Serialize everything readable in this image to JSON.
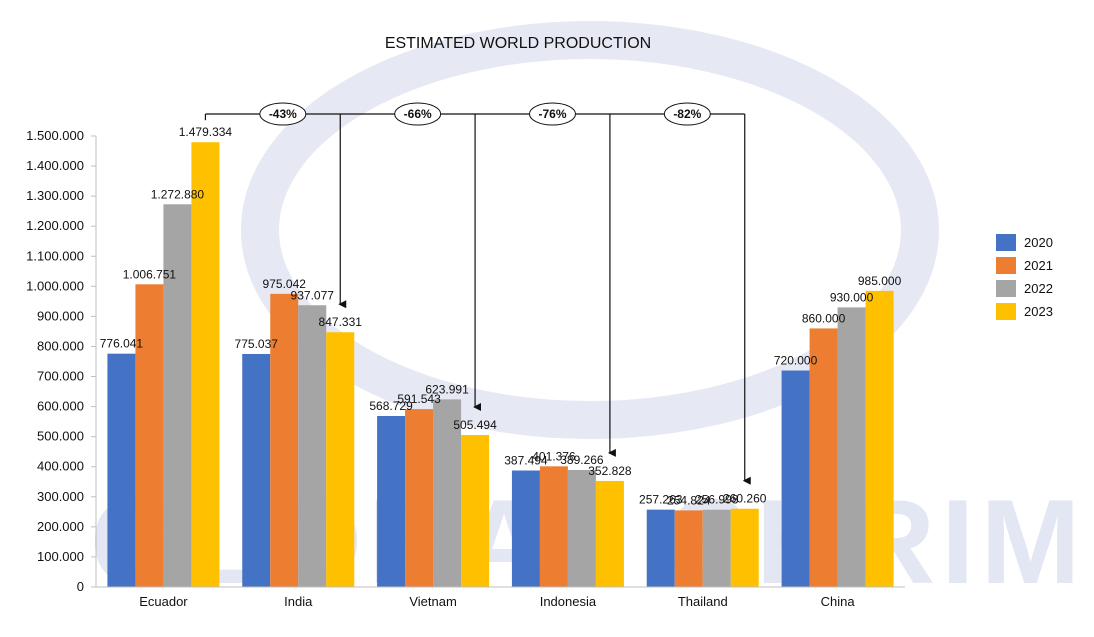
{
  "chart_data": {
    "type": "bar",
    "title": "ESTIMATED WORLD PRODUCTION",
    "xlabel": "",
    "ylabel": "",
    "ylim": [
      0,
      1500000
    ],
    "ytick_step": 100000,
    "ytick_labels": [
      "0",
      "100.000",
      "200.000",
      "300.000",
      "400.000",
      "500.000",
      "600.000",
      "700.000",
      "800.000",
      "900.000",
      "1.000.000",
      "1.100.000",
      "1.200.000",
      "1.300.000",
      "1.400.000",
      "1.500.000"
    ],
    "categories": [
      "Ecuador",
      "India",
      "Vietnam",
      "Indonesia",
      "Thailand",
      "China"
    ],
    "series": [
      {
        "name": "2020",
        "color": "#4472c4",
        "values": [
          776041,
          775037,
          568729,
          387494,
          257263,
          720000
        ],
        "labels": [
          "776.041",
          "775.037",
          "568.729",
          "387.494",
          "257.263",
          "720.000"
        ]
      },
      {
        "name": "2021",
        "color": "#ed7d31",
        "values": [
          1006751,
          975042,
          591543,
          401376,
          254824,
          860000
        ],
        "labels": [
          "1.006.751",
          "975.042",
          "591.543",
          "401.376",
          "254.824",
          "860.000"
        ]
      },
      {
        "name": "2022",
        "color": "#a5a5a5",
        "values": [
          1272880,
          937077,
          623991,
          389266,
          256998,
          930000
        ],
        "labels": [
          "1.272.880",
          "937.077",
          "623.991",
          "389.266",
          "256.998",
          "930.000"
        ]
      },
      {
        "name": "2023",
        "color": "#ffc000",
        "values": [
          1479334,
          847331,
          505494,
          352828,
          260260,
          985000
        ],
        "labels": [
          "1.479.334",
          "847.331",
          "505.494",
          "352.828",
          "260.260",
          "985.000"
        ]
      }
    ],
    "legend_position": "right",
    "grid": false,
    "annotations": [
      {
        "text": "-43%",
        "target_category": "India",
        "target_series": "2023"
      },
      {
        "text": "-66%",
        "target_category": "Vietnam",
        "target_series": "2023"
      },
      {
        "text": "-76%",
        "target_category": "Indonesia",
        "target_series": "2023"
      },
      {
        "text": "-82%",
        "target_category": "Thailand",
        "target_series": "2023"
      }
    ],
    "annotation_source": {
      "category": "Ecuador",
      "series": "2023"
    }
  },
  "watermark": {
    "text": "GLOBAL SHRIMP"
  }
}
